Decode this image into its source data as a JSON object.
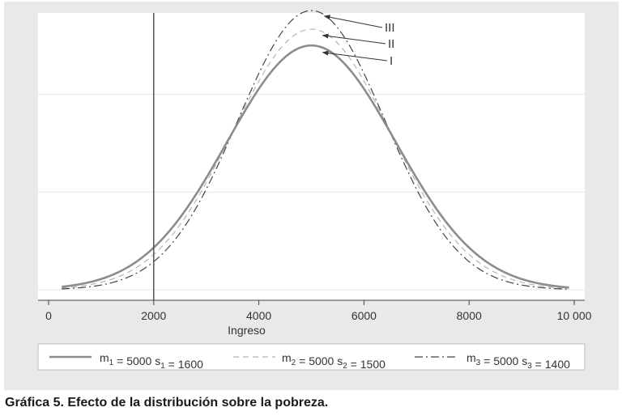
{
  "chart_data": {
    "type": "line",
    "title": "",
    "xlabel": "Ingreso",
    "ylabel": "",
    "xlim": [
      -200,
      10200
    ],
    "ylim": [
      0,
      1.1
    ],
    "x_ticks": [
      0,
      2000,
      4000,
      6000,
      8000,
      10000
    ],
    "x_tick_labels": [
      "0",
      "2000",
      "4000",
      "6000",
      "8000",
      "10 000"
    ],
    "y_gridlines": [
      0.0,
      0.4,
      0.8
    ],
    "x_range": [
      250,
      9900
    ],
    "vertical_line": 2000,
    "grid": true,
    "legend_position": "bottom",
    "series": [
      {
        "name": "m1=5000  s1=1600",
        "m": 5000,
        "s": 1600,
        "style": "solid",
        "color": "#8c8c8c",
        "label": "I"
      },
      {
        "name": "m2=5000  s2=1500",
        "m": 5000,
        "s": 1500,
        "style": "dashed",
        "color": "#b5b5b5",
        "label": "II"
      },
      {
        "name": "m3=5000  s3=1400",
        "m": 5000,
        "s": 1400,
        "style": "dashdot",
        "color": "#444444",
        "label": "III"
      }
    ]
  },
  "legend": {
    "items": [
      {
        "m_sym": "m",
        "m_sub": "1",
        "m_val": "5000",
        "s_sym": "s",
        "s_sub": "1",
        "s_val": "1600"
      },
      {
        "m_sym": "m",
        "m_sub": "2",
        "m_val": "5000",
        "s_sym": "s",
        "s_sub": "2",
        "s_val": "1500"
      },
      {
        "m_sym": "m",
        "m_sub": "3",
        "m_val": "5000",
        "s_sym": "s",
        "s_sub": "3",
        "s_val": "1400"
      }
    ]
  },
  "caption": "Gráfica 5. Efecto de la distribución sobre la pobreza."
}
